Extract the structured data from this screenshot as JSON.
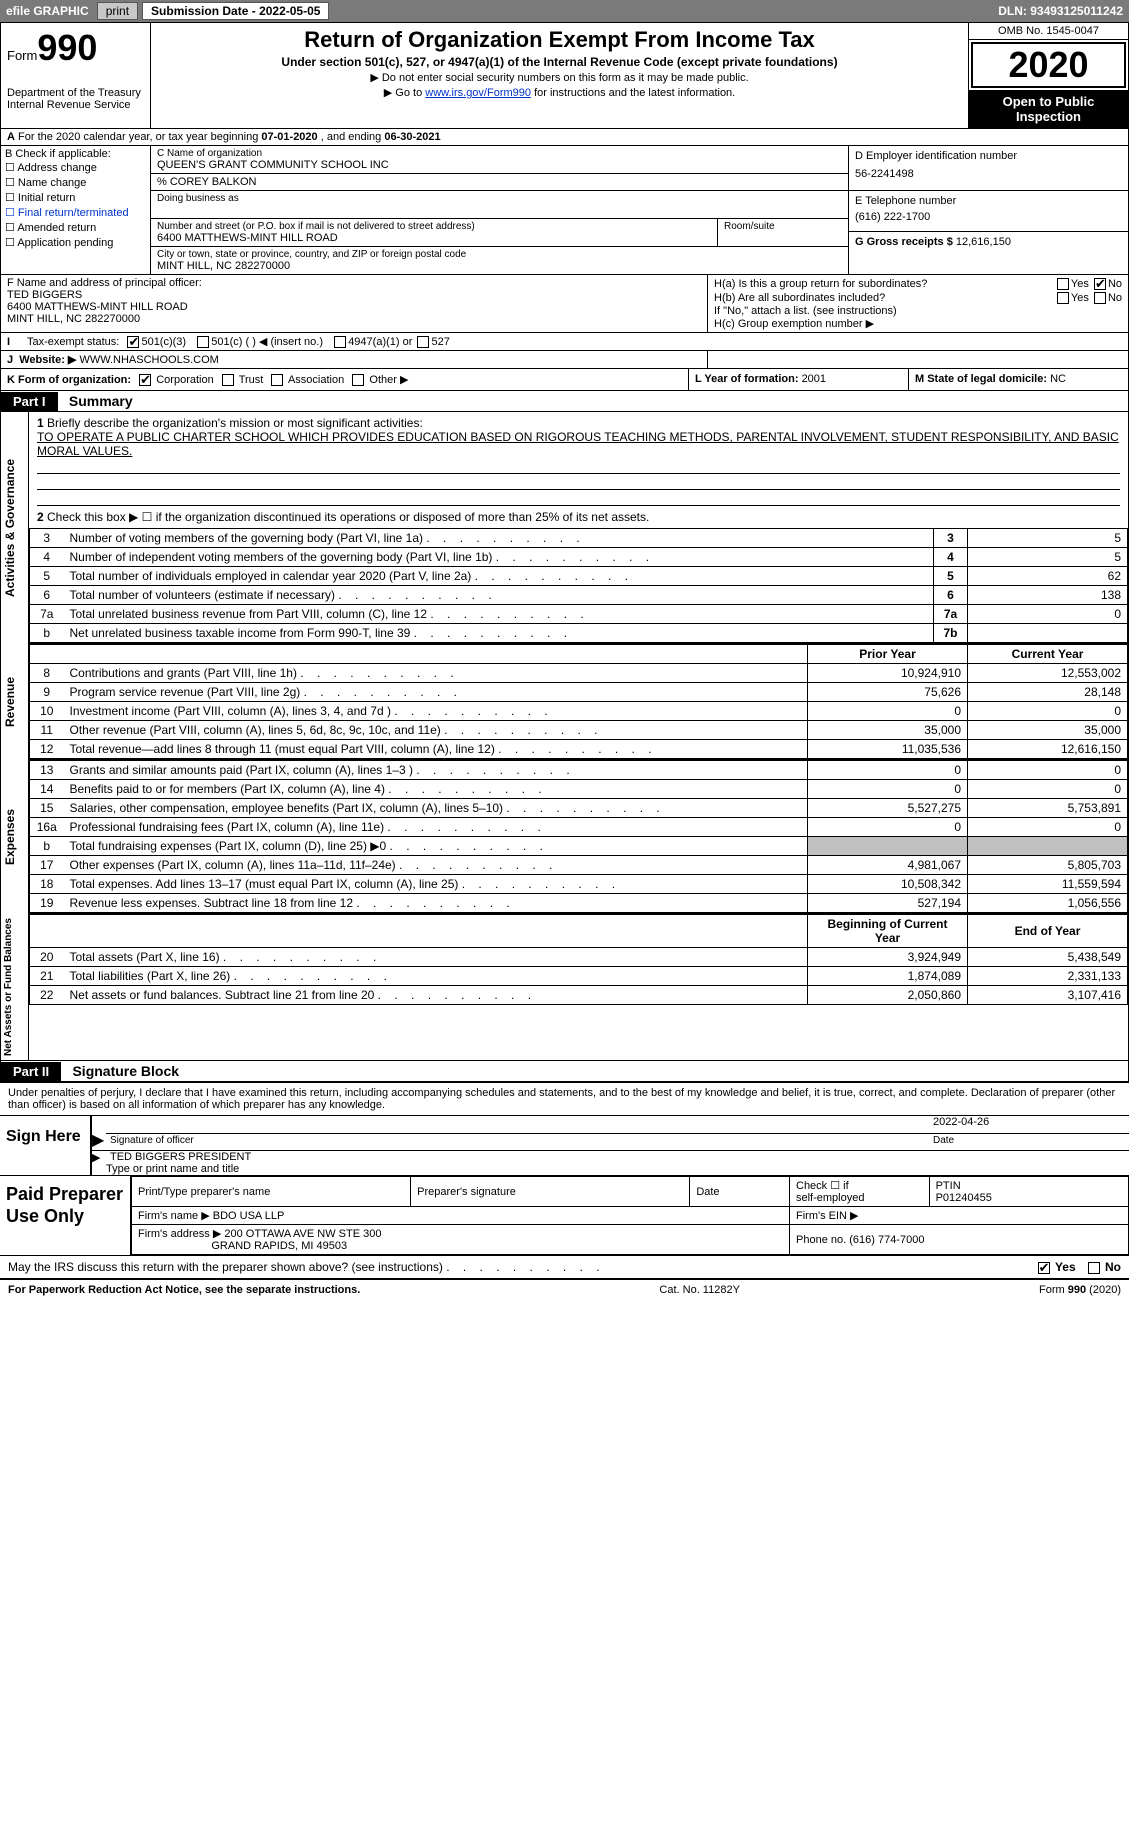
{
  "topbar": {
    "efile": "efile GRAPHIC",
    "print": "print",
    "sub_label": "Submission Date - ",
    "sub_date": "2022-05-05",
    "dln_label": "DLN: ",
    "dln": "93493125011242"
  },
  "header": {
    "form_label": "Form",
    "form_no": "990",
    "dept1": "Department of the Treasury",
    "dept2": "Internal Revenue Service",
    "title": "Return of Organization Exempt From Income Tax",
    "sub": "Under section 501(c), 527, or 4947(a)(1) of the Internal Revenue Code (except private foundations)",
    "note1": "▶ Do not enter social security numbers on this form as it may be made public.",
    "note2a": "▶ Go to ",
    "note2link": "www.irs.gov/Form990",
    "note2b": " for instructions and the latest information.",
    "omb": "OMB No. 1545-0047",
    "year": "2020",
    "inspect": "Open to Public Inspection"
  },
  "rowA": {
    "text_a": "For the 2020 calendar year, or tax year beginning ",
    "begin": "07-01-2020",
    "text_b": " , and ending ",
    "end": "06-30-2021"
  },
  "boxB": {
    "title": "B Check if applicable:",
    "items": [
      "Address change",
      "Name change",
      "Initial return",
      "Final return/terminated",
      "Amended return",
      "Application pending"
    ]
  },
  "boxC": {
    "name_lbl": "C Name of organization",
    "name": "QUEEN'S GRANT COMMUNITY SCHOOL INC",
    "care_lbl": "% COREY BALKON",
    "dba_lbl": "Doing business as",
    "addr_lbl": "Number and street (or P.O. box if mail is not delivered to street address)",
    "addr": "6400 MATTHEWS-MINT HILL ROAD",
    "room_lbl": "Room/suite",
    "city_lbl": "City or town, state or province, country, and ZIP or foreign postal code",
    "city": "MINT HILL, NC  282270000"
  },
  "boxD": {
    "lbl": "D Employer identification number",
    "val": "56-2241498"
  },
  "boxE": {
    "lbl": "E Telephone number",
    "val": "(616) 222-1700"
  },
  "boxG": {
    "lbl": "G Gross receipts $ ",
    "val": "12,616,150"
  },
  "boxF": {
    "lbl": "F Name and address of principal officer:",
    "name": "TED BIGGERS",
    "addr1": "6400 MATTHEWS-MINT HILL ROAD",
    "addr2": "MINT HILL, NC  282270000"
  },
  "boxH": {
    "ha": "H(a)  Is this a group return for subordinates?",
    "hb": "H(b)  Are all subordinates included?",
    "hb2": "If \"No,\" attach a list. (see instructions)",
    "hc": "H(c)  Group exemption number ▶",
    "yes": "Yes",
    "no": "No"
  },
  "rowI": {
    "lbl": "Tax-exempt status:",
    "o1": "501(c)(3)",
    "o2": "501(c) (   ) ◀ (insert no.)",
    "o3": "4947(a)(1) or",
    "o4": "527"
  },
  "rowJ": {
    "lbl": "Website: ▶",
    "val": "WWW.NHASCHOOLS.COM"
  },
  "rowK": {
    "lbl": "K Form of organization:",
    "o1": "Corporation",
    "o2": "Trust",
    "o3": "Association",
    "o4": "Other ▶",
    "L": "L Year of formation: ",
    "Lval": "2001",
    "M": "M State of legal domicile: ",
    "Mval": "NC"
  },
  "part1": {
    "tag": "Part I",
    "title": "Summary"
  },
  "sec1": {
    "l1a": "Briefly describe the organization's mission or most significant activities:",
    "l1b": "TO OPERATE A PUBLIC CHARTER SCHOOL WHICH PROVIDES EDUCATION BASED ON RIGOROUS TEACHING METHODS, PARENTAL INVOLVEMENT, STUDENT RESPONSIBILITY, AND BASIC MORAL VALUES.",
    "l2": "Check this box ▶ ☐  if the organization discontinued its operations or disposed of more than 25% of its net assets.",
    "rows": [
      {
        "n": "3",
        "t": "Number of voting members of the governing body (Part VI, line 1a)",
        "ln": "3",
        "v": "5"
      },
      {
        "n": "4",
        "t": "Number of independent voting members of the governing body (Part VI, line 1b)",
        "ln": "4",
        "v": "5"
      },
      {
        "n": "5",
        "t": "Total number of individuals employed in calendar year 2020 (Part V, line 2a)",
        "ln": "5",
        "v": "62"
      },
      {
        "n": "6",
        "t": "Total number of volunteers (estimate if necessary)",
        "ln": "6",
        "v": "138"
      },
      {
        "n": "7a",
        "t": "Total unrelated business revenue from Part VIII, column (C), line 12",
        "ln": "7a",
        "v": "0"
      },
      {
        "n": "b",
        "t": "Net unrelated business taxable income from Form 990-T, line 39",
        "ln": "7b",
        "v": ""
      }
    ],
    "vtab": "Activities & Governance"
  },
  "sec2": {
    "vtab": "Revenue",
    "h1": "Prior Year",
    "h2": "Current Year",
    "rows": [
      {
        "n": "8",
        "t": "Contributions and grants (Part VIII, line 1h)",
        "p": "10,924,910",
        "c": "12,553,002"
      },
      {
        "n": "9",
        "t": "Program service revenue (Part VIII, line 2g)",
        "p": "75,626",
        "c": "28,148"
      },
      {
        "n": "10",
        "t": "Investment income (Part VIII, column (A), lines 3, 4, and 7d )",
        "p": "0",
        "c": "0"
      },
      {
        "n": "11",
        "t": "Other revenue (Part VIII, column (A), lines 5, 6d, 8c, 9c, 10c, and 11e)",
        "p": "35,000",
        "c": "35,000"
      },
      {
        "n": "12",
        "t": "Total revenue—add lines 8 through 11 (must equal Part VIII, column (A), line 12)",
        "p": "11,035,536",
        "c": "12,616,150"
      }
    ]
  },
  "sec3": {
    "vtab": "Expenses",
    "rows": [
      {
        "n": "13",
        "t": "Grants and similar amounts paid (Part IX, column (A), lines 1–3 )",
        "p": "0",
        "c": "0"
      },
      {
        "n": "14",
        "t": "Benefits paid to or for members (Part IX, column (A), line 4)",
        "p": "0",
        "c": "0"
      },
      {
        "n": "15",
        "t": "Salaries, other compensation, employee benefits (Part IX, column (A), lines 5–10)",
        "p": "5,527,275",
        "c": "5,753,891"
      },
      {
        "n": "16a",
        "t": "Professional fundraising fees (Part IX, column (A), line 11e)",
        "p": "0",
        "c": "0"
      },
      {
        "n": "b",
        "t": "Total fundraising expenses (Part IX, column (D), line 25) ▶0",
        "p": "SHADE",
        "c": "SHADE"
      },
      {
        "n": "17",
        "t": "Other expenses (Part IX, column (A), lines 11a–11d, 11f–24e)",
        "p": "4,981,067",
        "c": "5,805,703"
      },
      {
        "n": "18",
        "t": "Total expenses. Add lines 13–17 (must equal Part IX, column (A), line 25)",
        "p": "10,508,342",
        "c": "11,559,594"
      },
      {
        "n": "19",
        "t": "Revenue less expenses. Subtract line 18 from line 12",
        "p": "527,194",
        "c": "1,056,556"
      }
    ]
  },
  "sec4": {
    "vtab": "Net Assets or Fund Balances",
    "h1": "Beginning of Current Year",
    "h2": "End of Year",
    "rows": [
      {
        "n": "20",
        "t": "Total assets (Part X, line 16)",
        "p": "3,924,949",
        "c": "5,438,549"
      },
      {
        "n": "21",
        "t": "Total liabilities (Part X, line 26)",
        "p": "1,874,089",
        "c": "2,331,133"
      },
      {
        "n": "22",
        "t": "Net assets or fund balances. Subtract line 21 from line 20",
        "p": "2,050,860",
        "c": "3,107,416"
      }
    ]
  },
  "part2": {
    "tag": "Part II",
    "title": "Signature Block"
  },
  "sig": {
    "intro": "Under penalties of perjury, I declare that I have examined this return, including accompanying schedules and statements, and to the best of my knowledge and belief, it is true, correct, and complete. Declaration of preparer (other than officer) is based on all information of which preparer has any knowledge.",
    "sign_here": "Sign Here",
    "sig_officer": "Signature of officer",
    "date_lbl": "Date",
    "date": "2022-04-26",
    "name": "TED BIGGERS PRESIDENT",
    "name_lbl": "Type or print name and title"
  },
  "prep": {
    "title": "Paid Preparer Use Only",
    "h1": "Print/Type preparer's name",
    "h2": "Preparer's signature",
    "h3": "Date",
    "h4a": "Check ☐ if",
    "h4b": "self-employed",
    "h5": "PTIN",
    "ptin": "P01240455",
    "firm_lbl": "Firm's name   ▶",
    "firm": "BDO USA LLP",
    "ein_lbl": "Firm's EIN ▶",
    "addr_lbl": "Firm's address ▶",
    "addr1": "200 OTTAWA AVE NW STE 300",
    "addr2": "GRAND RAPIDS, MI  49503",
    "phone_lbl": "Phone no. ",
    "phone": "(616) 774-7000"
  },
  "discuss": {
    "text": "May the IRS discuss this return with the preparer shown above? (see instructions)",
    "yes": "Yes",
    "no": "No"
  },
  "footer": {
    "a": "For Paperwork Reduction Act Notice, see the separate instructions.",
    "b": "Cat. No. 11282Y",
    "c": "Form 990 (2020)"
  }
}
